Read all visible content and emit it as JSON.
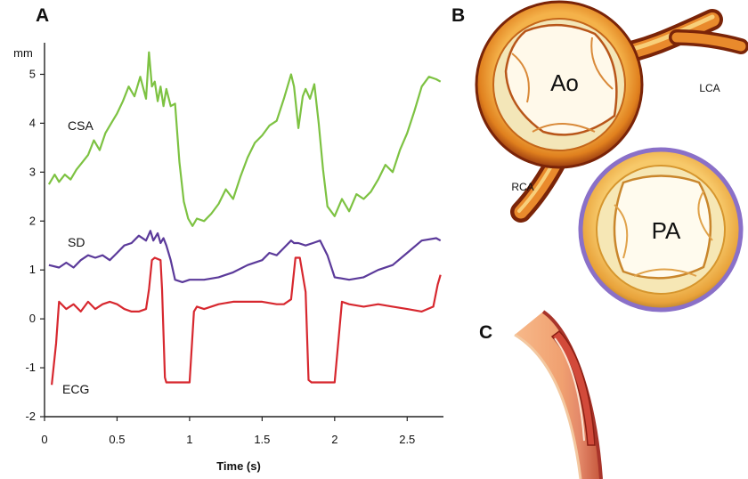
{
  "panels": {
    "a": "A",
    "b": "B",
    "c": "C"
  },
  "chart_data": {
    "type": "line",
    "xlabel": "Time (s)",
    "ylabel": "mm",
    "xlim": [
      0,
      2.75
    ],
    "ylim": [
      -2,
      5.5
    ],
    "xticks": [
      0,
      0.5,
      1,
      1.5,
      2,
      2.5
    ],
    "xtick_labels": [
      "0",
      "0.5",
      "1",
      "1.5",
      "2",
      "2.5"
    ],
    "yticks": [
      -2,
      -1,
      0,
      1,
      2,
      3,
      4,
      5
    ],
    "ytick_labels": [
      "-2",
      "-1",
      "0",
      "1",
      "2",
      "3",
      "4",
      "5"
    ],
    "grid": false,
    "legend": "none",
    "series": [
      {
        "name": "CSA",
        "color": "#7dc242",
        "x": [
          0.03,
          0.07,
          0.1,
          0.14,
          0.18,
          0.22,
          0.26,
          0.3,
          0.34,
          0.38,
          0.42,
          0.46,
          0.5,
          0.54,
          0.58,
          0.62,
          0.66,
          0.7,
          0.72,
          0.74,
          0.76,
          0.78,
          0.8,
          0.82,
          0.84,
          0.87,
          0.9,
          0.93,
          0.96,
          0.99,
          1.02,
          1.05,
          1.1,
          1.15,
          1.2,
          1.25,
          1.3,
          1.35,
          1.4,
          1.45,
          1.5,
          1.55,
          1.6,
          1.65,
          1.7,
          1.72,
          1.75,
          1.78,
          1.8,
          1.83,
          1.86,
          1.89,
          1.92,
          1.95,
          2.0,
          2.05,
          2.1,
          2.15,
          2.2,
          2.25,
          2.3,
          2.35,
          2.4,
          2.45,
          2.5,
          2.55,
          2.6,
          2.65,
          2.7,
          2.73
        ],
        "y": [
          2.75,
          2.95,
          2.8,
          2.95,
          2.85,
          3.05,
          3.2,
          3.35,
          3.65,
          3.45,
          3.8,
          4.0,
          4.2,
          4.45,
          4.75,
          4.55,
          4.95,
          4.5,
          5.45,
          4.75,
          4.85,
          4.45,
          4.75,
          4.35,
          4.7,
          4.35,
          4.4,
          3.2,
          2.4,
          2.05,
          1.9,
          2.05,
          2.0,
          2.15,
          2.35,
          2.65,
          2.45,
          2.9,
          3.3,
          3.6,
          3.75,
          3.95,
          4.05,
          4.5,
          5.0,
          4.75,
          3.9,
          4.55,
          4.7,
          4.5,
          4.8,
          4.0,
          3.05,
          2.3,
          2.1,
          2.45,
          2.2,
          2.55,
          2.45,
          2.6,
          2.85,
          3.15,
          3.0,
          3.45,
          3.8,
          4.25,
          4.75,
          4.95,
          4.9,
          4.85
        ]
      },
      {
        "name": "SD",
        "color": "#5b3a9a",
        "x": [
          0.03,
          0.1,
          0.15,
          0.2,
          0.25,
          0.3,
          0.35,
          0.4,
          0.45,
          0.5,
          0.55,
          0.6,
          0.65,
          0.7,
          0.73,
          0.75,
          0.78,
          0.8,
          0.82,
          0.84,
          0.87,
          0.9,
          0.95,
          1.0,
          1.1,
          1.2,
          1.3,
          1.4,
          1.5,
          1.55,
          1.6,
          1.65,
          1.7,
          1.72,
          1.75,
          1.8,
          1.85,
          1.9,
          1.95,
          2.0,
          2.1,
          2.2,
          2.3,
          2.4,
          2.5,
          2.6,
          2.7,
          2.73
        ],
        "y": [
          1.1,
          1.05,
          1.15,
          1.05,
          1.2,
          1.3,
          1.25,
          1.3,
          1.2,
          1.35,
          1.5,
          1.55,
          1.7,
          1.6,
          1.8,
          1.6,
          1.75,
          1.55,
          1.65,
          1.5,
          1.2,
          0.8,
          0.75,
          0.8,
          0.8,
          0.85,
          0.95,
          1.1,
          1.2,
          1.35,
          1.3,
          1.45,
          1.6,
          1.55,
          1.55,
          1.5,
          1.55,
          1.6,
          1.3,
          0.85,
          0.8,
          0.85,
          1.0,
          1.1,
          1.35,
          1.6,
          1.65,
          1.6
        ]
      },
      {
        "name": "ECG",
        "color": "#d7282f",
        "x": [
          0.05,
          0.08,
          0.1,
          0.15,
          0.2,
          0.25,
          0.3,
          0.35,
          0.4,
          0.45,
          0.5,
          0.55,
          0.6,
          0.65,
          0.7,
          0.72,
          0.74,
          0.76,
          0.8,
          0.81,
          0.83,
          0.84,
          0.86,
          0.9,
          1.0,
          1.03,
          1.05,
          1.1,
          1.2,
          1.3,
          1.4,
          1.5,
          1.6,
          1.65,
          1.7,
          1.73,
          1.76,
          1.8,
          1.82,
          1.84,
          1.87,
          1.9,
          2.0,
          2.05,
          2.1,
          2.2,
          2.3,
          2.4,
          2.5,
          2.6,
          2.68,
          2.71,
          2.73
        ],
        "y": [
          -1.35,
          -0.5,
          0.35,
          0.2,
          0.3,
          0.15,
          0.35,
          0.2,
          0.3,
          0.35,
          0.3,
          0.2,
          0.15,
          0.15,
          0.2,
          0.6,
          1.2,
          1.25,
          1.2,
          0.6,
          -1.2,
          -1.3,
          -1.3,
          -1.3,
          -1.3,
          0.15,
          0.25,
          0.2,
          0.3,
          0.35,
          0.35,
          0.35,
          0.3,
          0.3,
          0.4,
          1.25,
          1.25,
          0.55,
          -1.25,
          -1.3,
          -1.3,
          -1.3,
          -1.3,
          0.35,
          0.3,
          0.25,
          0.3,
          0.25,
          0.2,
          0.15,
          0.25,
          0.7,
          0.9
        ]
      }
    ]
  },
  "anatomy": {
    "aorta_label": "Ao",
    "pa_label": "PA",
    "lca_label": "LCA",
    "rca_label": "RCA"
  }
}
